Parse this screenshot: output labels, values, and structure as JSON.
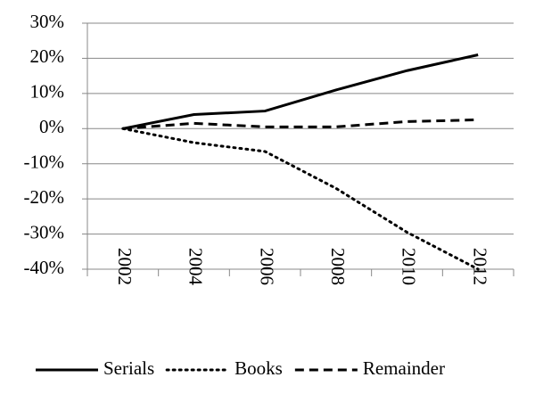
{
  "chart_data": {
    "type": "line",
    "categories": [
      "2002",
      "2004",
      "2006",
      "2008",
      "2010",
      "2012"
    ],
    "series": [
      {
        "name": "Serials",
        "color": "#000000",
        "dash": "solid",
        "values": [
          0,
          4,
          5,
          11,
          16.5,
          21
        ]
      },
      {
        "name": "Books",
        "color": "#000000",
        "dash": "dotted",
        "values": [
          0,
          -4,
          -6.5,
          -17,
          -29.5,
          -40
        ]
      },
      {
        "name": "Remainder",
        "color": "#000000",
        "dash": "dashed",
        "values": [
          0,
          1.5,
          0.5,
          0.5,
          2,
          2.5
        ]
      }
    ],
    "ylim": [
      -40,
      30
    ],
    "yticks": [
      {
        "value": -40,
        "label": "-40%"
      },
      {
        "value": -30,
        "label": "-30%"
      },
      {
        "value": -20,
        "label": "-20%"
      },
      {
        "value": -10,
        "label": "-10%"
      },
      {
        "value": 0,
        "label": "0%"
      },
      {
        "value": 10,
        "label": "10%"
      },
      {
        "value": 20,
        "label": "20%"
      },
      {
        "value": 30,
        "label": "30%"
      }
    ],
    "grid": true,
    "legend": "bottom"
  }
}
